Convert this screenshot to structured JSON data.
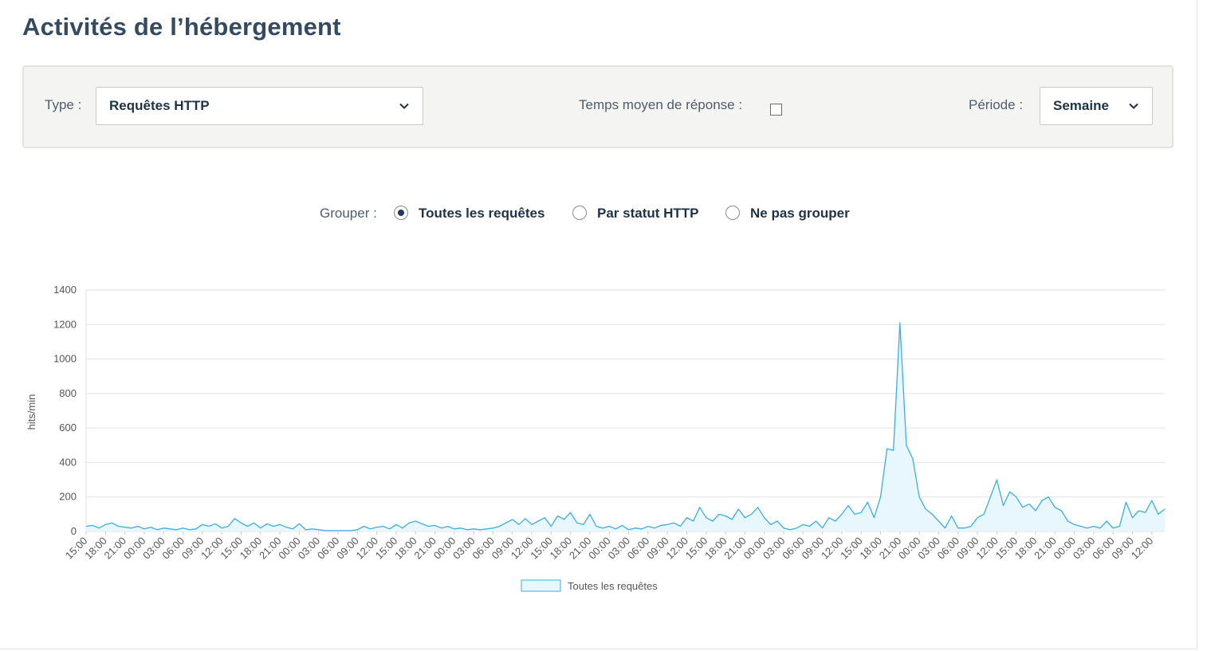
{
  "header": {
    "title": "Activités de l’hébergement"
  },
  "filters": {
    "type_label": "Type :",
    "type_value": "Requêtes HTTP",
    "response_label": "Temps moyen de réponse :",
    "period_label": "Période :",
    "period_value": "Semaine"
  },
  "group": {
    "label": "Grouper :",
    "options": [
      "Toutes les requêtes",
      "Par statut HTTP",
      "Ne pas grouper"
    ]
  },
  "chart_data": {
    "type": "area",
    "y_label": "hits/min",
    "categories": [
      "15:00",
      null,
      null,
      "18:00",
      null,
      null,
      "21:00",
      null,
      null,
      "00:00",
      null,
      null,
      "03:00",
      null,
      null,
      "06:00",
      null,
      null,
      "09:00",
      null,
      null,
      "12:00",
      null,
      null,
      "15:00",
      null,
      null,
      "18:00",
      null,
      null,
      "21:00",
      null,
      null,
      "00:00",
      null,
      null,
      "03:00",
      null,
      null,
      "06:00",
      null,
      null,
      "09:00",
      null,
      null,
      "12:00",
      null,
      null,
      "15:00",
      null,
      null,
      "18:00",
      null,
      null,
      "21:00",
      null,
      null,
      "00:00",
      null,
      null,
      "03:00",
      null,
      null,
      "06:00",
      null,
      null,
      "09:00",
      null,
      null,
      "12:00",
      null,
      null,
      "15:00",
      null,
      null,
      "18:00",
      null,
      null,
      "21:00",
      null,
      null,
      "00:00",
      null,
      null,
      "03:00",
      null,
      null,
      "06:00",
      null,
      null,
      "09:00",
      null,
      null,
      "12:00",
      null,
      null,
      "15:00",
      null,
      null,
      "18:00",
      null,
      null,
      "21:00",
      null,
      null,
      "00:00",
      null,
      null,
      "03:00",
      null,
      null,
      "06:00",
      null,
      null,
      "09:00",
      null,
      null,
      "12:00",
      null,
      null,
      "15:00",
      null,
      null,
      "18:00",
      null,
      null,
      "21:00",
      null,
      null,
      "00:00",
      null,
      null,
      "03:00",
      null,
      null,
      "06:00",
      null,
      null,
      "09:00",
      null,
      null,
      "12:00",
      null,
      null,
      "15:00",
      null,
      null,
      "18:00",
      null,
      null,
      "21:00",
      null,
      null,
      "00:00",
      null,
      null,
      "03:00",
      null,
      null,
      "06:00",
      null,
      null,
      "09:00",
      null,
      null,
      "12:00",
      null,
      null
    ],
    "series": [
      {
        "name": "Toutes les requêtes",
        "color": "#3aaee0",
        "fill": "#e8f6fd",
        "values": [
          30,
          35,
          20,
          40,
          50,
          30,
          25,
          20,
          30,
          15,
          25,
          10,
          20,
          15,
          10,
          20,
          10,
          15,
          40,
          30,
          45,
          20,
          30,
          75,
          50,
          30,
          50,
          20,
          45,
          30,
          40,
          25,
          15,
          45,
          10,
          15,
          10,
          5,
          5,
          5,
          5,
          5,
          10,
          30,
          15,
          25,
          30,
          15,
          40,
          20,
          50,
          60,
          45,
          30,
          35,
          20,
          30,
          15,
          20,
          10,
          15,
          10,
          15,
          20,
          30,
          50,
          70,
          40,
          75,
          40,
          60,
          80,
          30,
          90,
          70,
          110,
          50,
          40,
          100,
          30,
          20,
          30,
          15,
          35,
          10,
          20,
          15,
          30,
          20,
          35,
          40,
          50,
          30,
          80,
          60,
          140,
          80,
          60,
          100,
          90,
          70,
          130,
          80,
          100,
          140,
          80,
          40,
          60,
          20,
          10,
          20,
          40,
          30,
          60,
          20,
          80,
          60,
          100,
          150,
          100,
          110,
          170,
          80,
          200,
          480,
          470,
          1210,
          500,
          420,
          200,
          130,
          100,
          60,
          20,
          90,
          20,
          20,
          30,
          80,
          100,
          200,
          300,
          150,
          230,
          200,
          140,
          160,
          120,
          180,
          200,
          140,
          120,
          60,
          40,
          30,
          20,
          30,
          20,
          60,
          20,
          30,
          170,
          80,
          120,
          110,
          180,
          100,
          130
        ]
      }
    ],
    "ylim": [
      0,
      1400
    ],
    "yticks": [
      0,
      200,
      400,
      600,
      800,
      1000,
      1200,
      1400
    ],
    "grid": true,
    "legend": "bottom"
  }
}
